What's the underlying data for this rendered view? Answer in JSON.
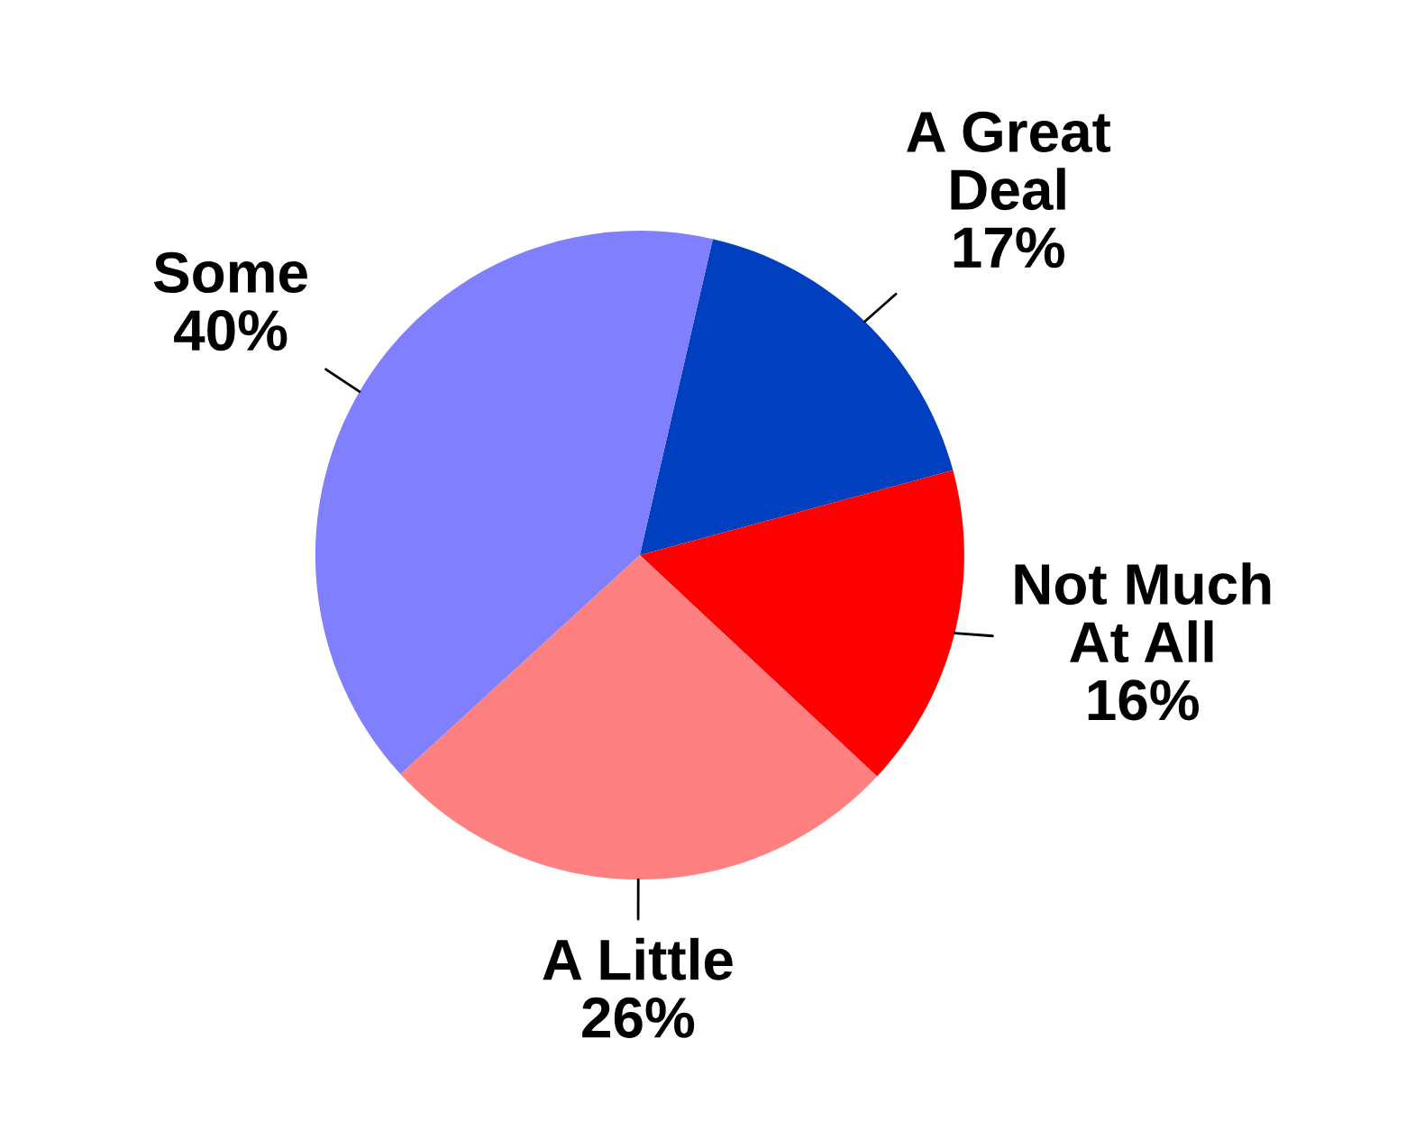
{
  "chart_data": {
    "type": "pie",
    "categories": [
      "A Great Deal",
      "Not Much At All",
      "A Little",
      "Some"
    ],
    "values": [
      17,
      16,
      26,
      40
    ],
    "value_labels": [
      "17%",
      "16%",
      "26%",
      "40%"
    ],
    "colors": [
      "#0040c0",
      "#ff0000",
      "#ff8080",
      "#8080ff"
    ]
  }
}
